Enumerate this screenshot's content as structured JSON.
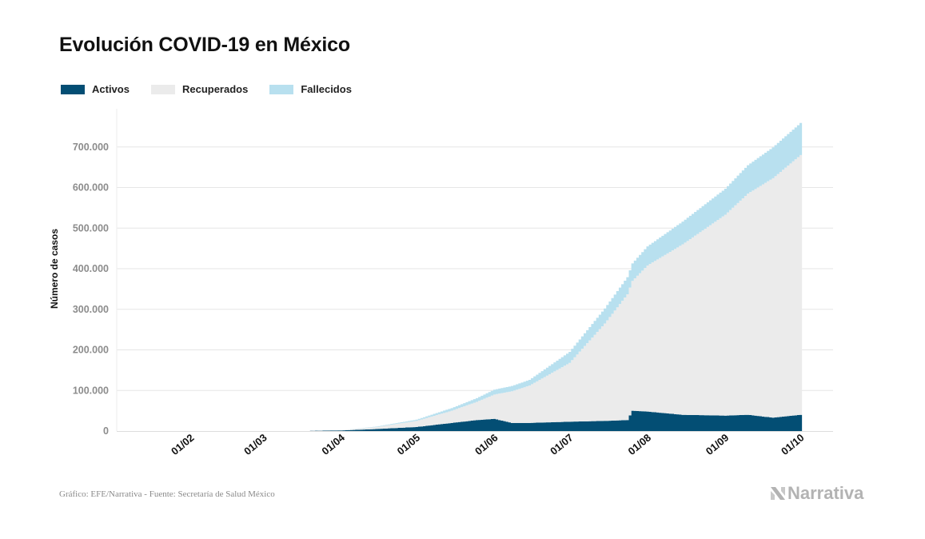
{
  "title": "Evolución COVID-19 en México",
  "legend": [
    {
      "label": "Activos",
      "color": "#034e74"
    },
    {
      "label": "Recuperados",
      "color": "#ebebeb"
    },
    {
      "label": "Fallecidos",
      "color": "#b8e0ef"
    }
  ],
  "footer": "Gráfico: EFE/Narrativa - Fuente: Secretaría de Salud México",
  "logo_text": "Narrativa",
  "chart_data": {
    "type": "area",
    "stacked": true,
    "ylabel": "Número de casos",
    "ylim": [
      0,
      800000
    ],
    "y_ticks": [
      0,
      100000,
      200000,
      300000,
      400000,
      500000,
      600000,
      700000
    ],
    "y_tick_labels": [
      "0",
      "100.000",
      "200.000",
      "300.000",
      "400.000",
      "500.000",
      "600.000",
      "700.000"
    ],
    "x_tick_labels": [
      "01/02",
      "01/03",
      "01/04",
      "01/05",
      "01/06",
      "01/07",
      "01/08",
      "01/09",
      "01/10"
    ],
    "x_tick_dates": [
      "2020-02-01",
      "2020-03-01",
      "2020-04-01",
      "2020-05-01",
      "2020-06-01",
      "2020-07-01",
      "2020-08-01",
      "2020-09-01",
      "2020-10-01"
    ],
    "x_range": [
      "2020-01-03",
      "2020-10-01"
    ],
    "grid": true,
    "x": [
      "2020-03-20",
      "2020-04-01",
      "2020-04-15",
      "2020-05-01",
      "2020-05-15",
      "2020-05-25",
      "2020-06-01",
      "2020-06-08",
      "2020-06-15",
      "2020-07-01",
      "2020-07-15",
      "2020-07-24",
      "2020-07-26",
      "2020-08-01",
      "2020-08-15",
      "2020-09-01",
      "2020-09-10",
      "2020-09-20",
      "2020-10-01"
    ],
    "series": [
      {
        "name": "Activos",
        "values": [
          500,
          1500,
          5000,
          10000,
          20000,
          27000,
          30000,
          20000,
          20000,
          23000,
          25000,
          27000,
          50000,
          48000,
          40000,
          38000,
          40000,
          33000,
          40000
        ]
      },
      {
        "name": "Recuperados",
        "values": [
          0,
          500,
          5000,
          15000,
          30000,
          45000,
          60000,
          78000,
          92000,
          145000,
          240000,
          310000,
          320000,
          360000,
          420000,
          495000,
          545000,
          590000,
          640000
        ]
      },
      {
        "name": "Fallecidos",
        "values": [
          0,
          50,
          1000,
          3000,
          6500,
          9000,
          12000,
          13000,
          14000,
          27000,
          37000,
          42000,
          43000,
          47000,
          56000,
          64000,
          70000,
          76000,
          79000
        ]
      }
    ]
  }
}
